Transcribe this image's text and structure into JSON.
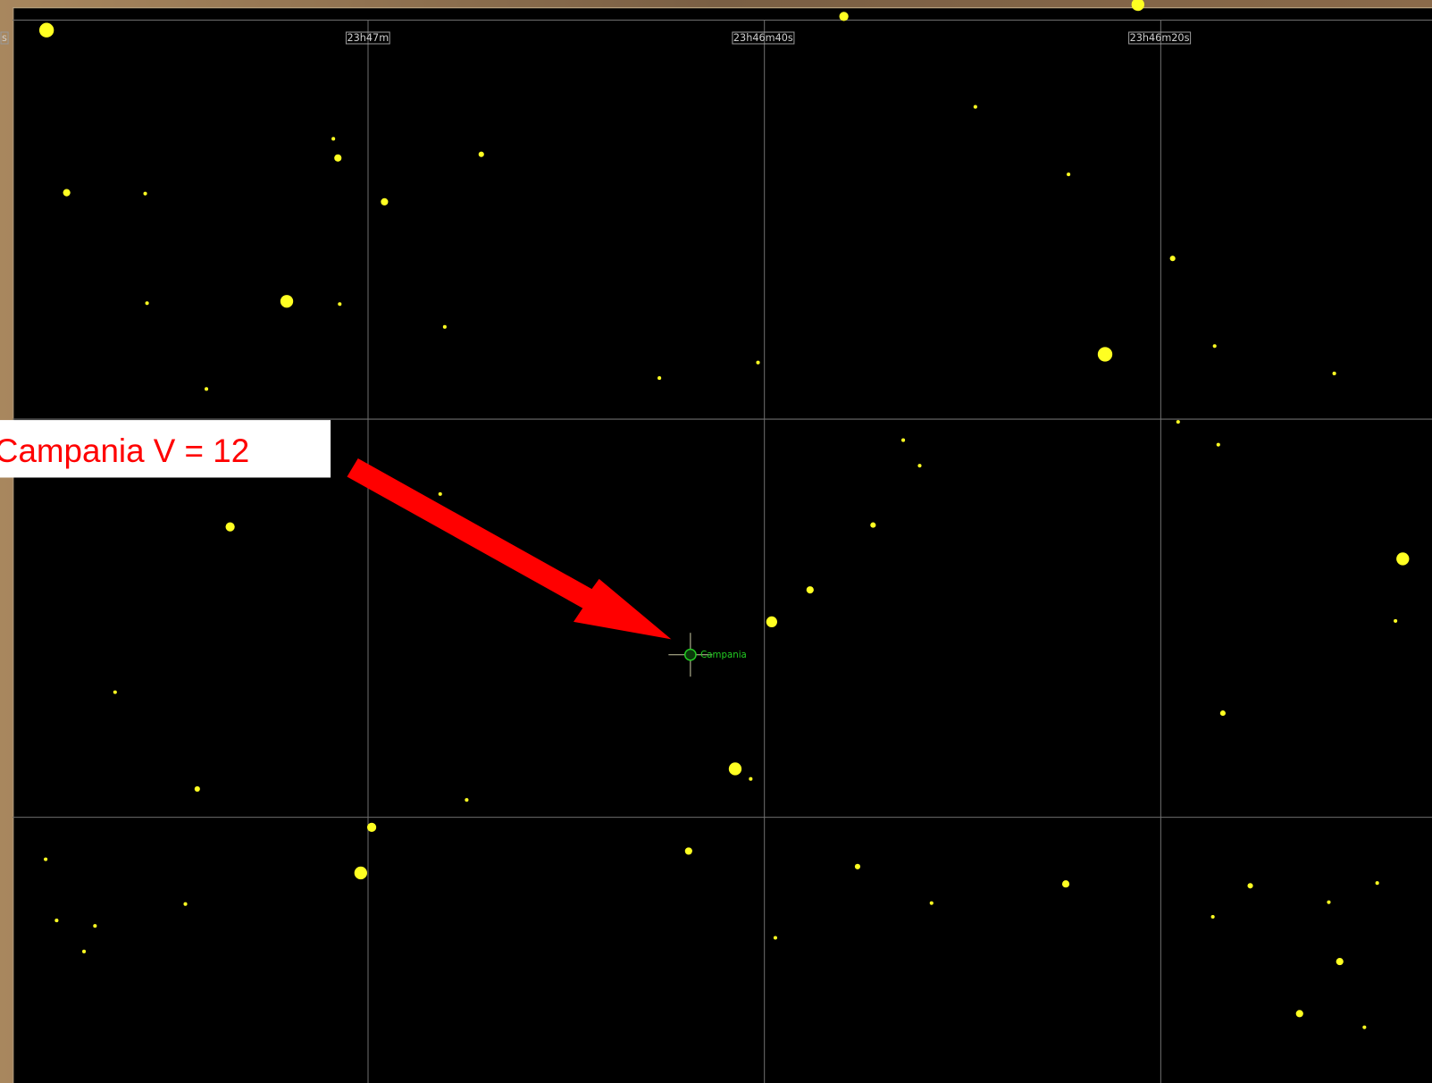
{
  "grid_labels": [
    "s",
    "23h47m",
    "23h46m40s",
    "23h46m20s"
  ],
  "target_label": "Campania",
  "annotation": "Campania V = 12"
}
